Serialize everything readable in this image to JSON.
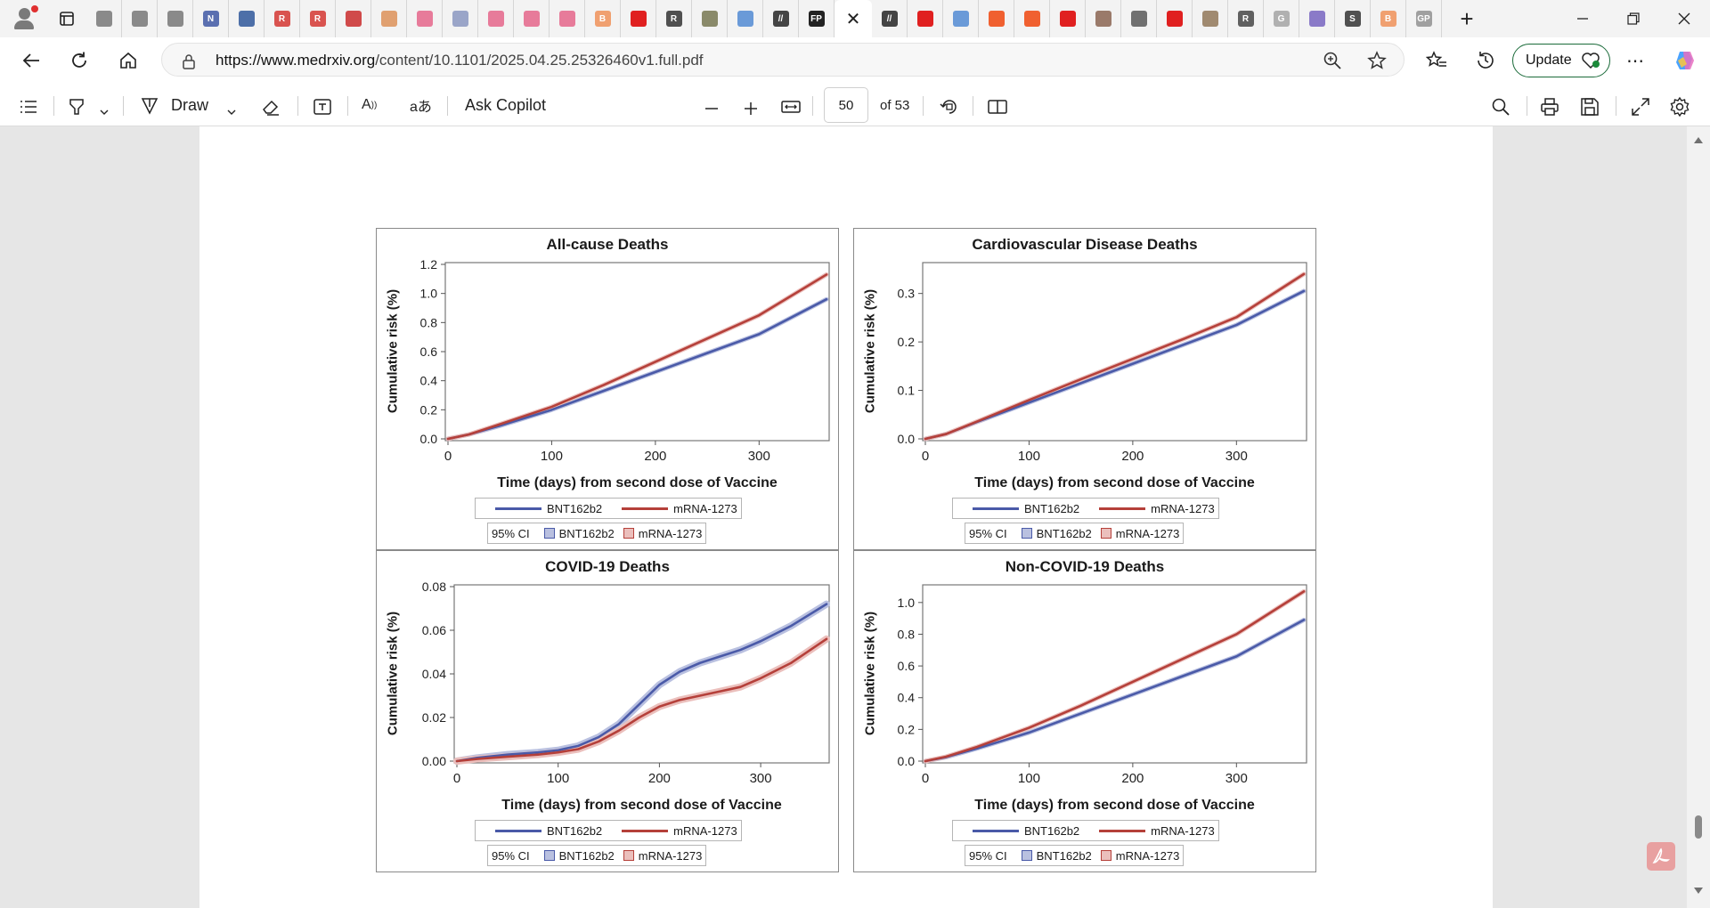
{
  "browser": {
    "url_domain": "https://www.medrxiv.org",
    "url_path": "/content/10.1101/2025.04.25.25326460v1.full.pdf",
    "update_label": "Update",
    "tab_close": "✕",
    "tabs": [
      {
        "icon": "globe-icon",
        "color": "#8a8a8a",
        "text": ""
      },
      {
        "icon": "globe-icon",
        "color": "#8a8a8a",
        "text": ""
      },
      {
        "icon": "globe-icon",
        "color": "#8a8a8a",
        "text": ""
      },
      {
        "icon": "news-icon",
        "color": "#5a6fb0",
        "text": "N"
      },
      {
        "icon": "document-icon",
        "color": "#4d6fa8",
        "text": ""
      },
      {
        "icon": "r-logo-icon",
        "color": "#d9534f",
        "text": "R"
      },
      {
        "icon": "r-logo-icon",
        "color": "#d9534f",
        "text": "R"
      },
      {
        "icon": "pdf-icon",
        "color": "#d04a4a",
        "text": ""
      },
      {
        "icon": "avatar-icon",
        "color": "#e0a070",
        "text": ""
      },
      {
        "icon": "video-icon",
        "color": "#e77b9a",
        "text": ""
      },
      {
        "icon": "heart-rate-icon",
        "color": "#9aa5c8",
        "text": ""
      },
      {
        "icon": "video-icon",
        "color": "#e77b9a",
        "text": ""
      },
      {
        "icon": "video-icon",
        "color": "#e77b9a",
        "text": ""
      },
      {
        "icon": "video-icon",
        "color": "#e77b9a",
        "text": ""
      },
      {
        "icon": "b-logo-icon",
        "color": "#f0a070",
        "text": "B"
      },
      {
        "icon": "youtube-icon",
        "color": "#e02020",
        "text": ""
      },
      {
        "icon": "r-logo-icon",
        "color": "#505050",
        "text": "R"
      },
      {
        "icon": "image-icon",
        "color": "#8a8a6a",
        "text": ""
      },
      {
        "icon": "search-icon",
        "color": "#6a9ad8",
        "text": ""
      },
      {
        "icon": "slash-logo-icon",
        "color": "#444444",
        "text": "//"
      },
      {
        "icon": "fp-logo-icon",
        "color": "#222222",
        "text": "FP"
      },
      {
        "icon": "slash-logo-icon",
        "color": "#444444",
        "text": "//"
      },
      {
        "icon": "youtube-icon",
        "color": "#e02020",
        "text": ""
      },
      {
        "icon": "search-icon",
        "color": "#6a9ad8",
        "text": ""
      },
      {
        "icon": "bookmark-icon",
        "color": "#f06030",
        "text": ""
      },
      {
        "icon": "bookmark-icon",
        "color": "#f06030",
        "text": ""
      },
      {
        "icon": "youtube-icon",
        "color": "#e02020",
        "text": ""
      },
      {
        "icon": "image-icon",
        "color": "#9a7a6a",
        "text": ""
      },
      {
        "icon": "chart-icon",
        "color": "#707070",
        "text": ""
      },
      {
        "icon": "youtube-icon",
        "color": "#e02020",
        "text": ""
      },
      {
        "icon": "image-icon",
        "color": "#a08a70",
        "text": ""
      },
      {
        "icon": "r-logo-icon",
        "color": "#606060",
        "text": "R"
      },
      {
        "icon": "google-icon",
        "color": "#b0b0b0",
        "text": "G"
      },
      {
        "icon": "mail-icon",
        "color": "#8a7ac8",
        "text": ""
      },
      {
        "icon": "s-logo-icon",
        "color": "#505050",
        "text": "S"
      },
      {
        "icon": "b-logo-icon",
        "color": "#f0a070",
        "text": "B"
      },
      {
        "icon": "gp-logo-icon",
        "color": "#a0a0a0",
        "text": "GP"
      }
    ]
  },
  "pdf_toolbar": {
    "draw_label": "Draw",
    "copilot_label": "Ask Copilot",
    "page_number": "50",
    "page_total": "of 53"
  },
  "figure": {
    "legend_items": [
      "BNT162b2",
      "mRNA-1273"
    ],
    "ci_label": "95% CI",
    "series_colors": [
      "#4a5aa8",
      "#b5403a"
    ],
    "ci_colors": [
      "#b9c0e0",
      "#ebbfbc"
    ]
  },
  "chart_data": [
    {
      "type": "line",
      "title": "All-cause Deaths",
      "xlabel": "Time (days) from second dose of Vaccine",
      "ylabel": "Cumulative risk (%)",
      "xlim": [
        0,
        365
      ],
      "ylim": [
        0,
        1.2
      ],
      "xticks": [
        0,
        100,
        200,
        300
      ],
      "xtick_labels": [
        "0",
        "100",
        "200",
        "300"
      ],
      "yticks": [
        0,
        0.2,
        0.4,
        0.6,
        0.8,
        1.0,
        1.2
      ],
      "ytick_labels": [
        "0.0",
        "0.2",
        "0.4",
        "0.6",
        "0.8",
        "1.0",
        "1.2"
      ],
      "x": [
        0,
        20,
        50,
        100,
        150,
        200,
        250,
        300,
        365
      ],
      "series": [
        {
          "name": "BNT162b2",
          "values": [
            0,
            0.03,
            0.09,
            0.2,
            0.33,
            0.46,
            0.59,
            0.72,
            0.96
          ]
        },
        {
          "name": "mRNA-1273",
          "values": [
            0,
            0.03,
            0.1,
            0.22,
            0.37,
            0.53,
            0.69,
            0.85,
            1.13
          ]
        }
      ]
    },
    {
      "type": "line",
      "title": "Cardiovascular Disease Deaths",
      "xlabel": "Time (days) from second dose of Vaccine",
      "ylabel": "Cumulative risk (%)",
      "xlim": [
        0,
        365
      ],
      "ylim": [
        0,
        0.36
      ],
      "xticks": [
        0,
        100,
        200,
        300
      ],
      "xtick_labels": [
        "0",
        "100",
        "200",
        "300"
      ],
      "yticks": [
        0,
        0.1,
        0.2,
        0.3
      ],
      "ytick_labels": [
        "0.0",
        "0.1",
        "0.2",
        "0.3"
      ],
      "x": [
        0,
        20,
        50,
        100,
        150,
        200,
        250,
        300,
        365
      ],
      "series": [
        {
          "name": "BNT162b2",
          "values": [
            0,
            0.01,
            0.035,
            0.075,
            0.115,
            0.155,
            0.195,
            0.235,
            0.305
          ]
        },
        {
          "name": "mRNA-1273",
          "values": [
            0,
            0.01,
            0.036,
            0.08,
            0.123,
            0.165,
            0.207,
            0.251,
            0.34
          ]
        }
      ]
    },
    {
      "type": "line",
      "title": "COVID-19 Deaths",
      "xlabel": "Time (days) from second dose of Vaccine",
      "ylabel": "Cumulative risk (%)",
      "xlim": [
        0,
        365
      ],
      "ylim": [
        0,
        0.08
      ],
      "xticks": [
        0,
        100,
        200,
        300
      ],
      "xtick_labels": [
        "0",
        "100",
        "200",
        "300"
      ],
      "yticks": [
        0,
        0.02,
        0.04,
        0.06,
        0.08
      ],
      "ytick_labels": [
        "0.00",
        "0.02",
        "0.04",
        "0.06",
        "0.08"
      ],
      "x": [
        0,
        20,
        50,
        80,
        100,
        120,
        140,
        160,
        180,
        200,
        220,
        240,
        260,
        280,
        300,
        330,
        365
      ],
      "series": [
        {
          "name": "BNT162b2",
          "values": [
            0,
            0.0015,
            0.003,
            0.004,
            0.005,
            0.007,
            0.011,
            0.017,
            0.026,
            0.035,
            0.041,
            0.045,
            0.048,
            0.051,
            0.055,
            0.062,
            0.072
          ]
        },
        {
          "name": "mRNA-1273",
          "values": [
            0,
            0.001,
            0.002,
            0.003,
            0.004,
            0.0055,
            0.009,
            0.014,
            0.02,
            0.025,
            0.028,
            0.03,
            0.032,
            0.034,
            0.038,
            0.045,
            0.056
          ]
        }
      ]
    },
    {
      "type": "line",
      "title": "Non-COVID-19 Deaths",
      "xlabel": "Time (days) from second dose of Vaccine",
      "ylabel": "Cumulative risk (%)",
      "xlim": [
        0,
        365
      ],
      "ylim": [
        0,
        1.1
      ],
      "xticks": [
        0,
        100,
        200,
        300
      ],
      "xtick_labels": [
        "0",
        "100",
        "200",
        "300"
      ],
      "yticks": [
        0,
        0.2,
        0.4,
        0.6,
        0.8,
        1.0
      ],
      "ytick_labels": [
        "0.0",
        "0.2",
        "0.4",
        "0.6",
        "0.8",
        "1.0"
      ],
      "x": [
        0,
        20,
        50,
        100,
        150,
        200,
        250,
        300,
        365
      ],
      "series": [
        {
          "name": "BNT162b2",
          "values": [
            0,
            0.025,
            0.08,
            0.18,
            0.3,
            0.42,
            0.54,
            0.66,
            0.89
          ]
        },
        {
          "name": "mRNA-1273",
          "values": [
            0,
            0.028,
            0.09,
            0.21,
            0.35,
            0.5,
            0.65,
            0.8,
            1.07
          ]
        }
      ]
    }
  ]
}
